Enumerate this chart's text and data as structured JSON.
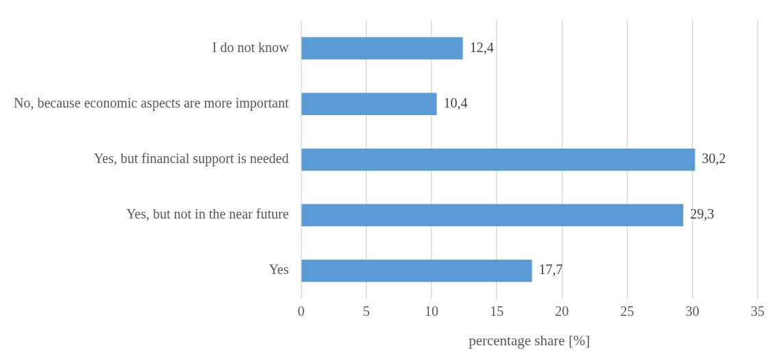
{
  "chart_data": {
    "type": "bar",
    "orientation": "horizontal",
    "categories": [
      "I do not know",
      "No, because economic aspects are more important",
      "Yes, but financial support is needed",
      "Yes, but not in the near future",
      "Yes"
    ],
    "values": [
      12.4,
      10.4,
      30.2,
      29.3,
      17.7
    ],
    "value_labels": [
      "12,4",
      "10,4",
      "30,2",
      "29,3",
      "17,7"
    ],
    "color": "#5b9bd5",
    "xlabel": "percentage share [%]",
    "xlim": [
      0,
      35
    ],
    "xticks": [
      0,
      5,
      10,
      15,
      20,
      25,
      30,
      35
    ],
    "grid": "x",
    "legend": false
  }
}
